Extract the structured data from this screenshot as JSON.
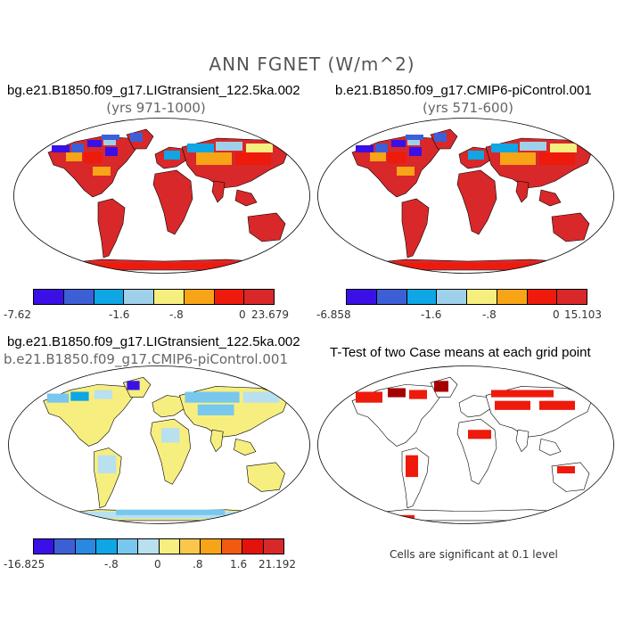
{
  "figure": {
    "title": "ANN FGNET (W/m^2)"
  },
  "panels": [
    {
      "title": "bg.e21.B1850.f09_g17.LIGtransient_122.5ka.002",
      "subtitle": "(yrs 971-1000)",
      "colorbar": {
        "colors": [
          "#3a10e6",
          "#3d5fd6",
          "#0ea6e4",
          "#9fd0ea",
          "#f7ee80",
          "#f7a417",
          "#ee1a0c",
          "#d8282a"
        ],
        "labels": [
          "-7.62",
          "-1.6",
          "-.8",
          "0",
          "23.679"
        ]
      }
    },
    {
      "title": "b.e21.B1850.f09_g17.CMIP6-piControl.001",
      "subtitle": "(yrs 571-600)",
      "colorbar": {
        "colors": [
          "#3a10e6",
          "#3d5fd6",
          "#0ea6e4",
          "#9fd0ea",
          "#f7ee80",
          "#f7a417",
          "#ee1a0c",
          "#d8282a"
        ],
        "labels": [
          "-6.858",
          "-1.6",
          "-.8",
          "0",
          "15.103"
        ]
      }
    },
    {
      "title": "bg.e21.B1850.f09_g17.LIGtransient_122.5ka.002",
      "subtitle": "b.e21.B1850.f09_g17.CMIP6-piControl.001",
      "colorbar": {
        "colors": [
          "#3a10e6",
          "#3d5fd6",
          "#2a88e0",
          "#0ea6e4",
          "#78c7ee",
          "#b8e0ef",
          "#f7ee80",
          "#fbc74a",
          "#f7a417",
          "#f15a0f",
          "#e4120c",
          "#d8282a"
        ],
        "labels": [
          "-16.825",
          "-.8",
          "0",
          ".8",
          "1.6",
          "21.192"
        ]
      }
    },
    {
      "title": "T-Test of two Case means at each grid point",
      "note": "Cells are significant at 0.1 level"
    }
  ]
}
